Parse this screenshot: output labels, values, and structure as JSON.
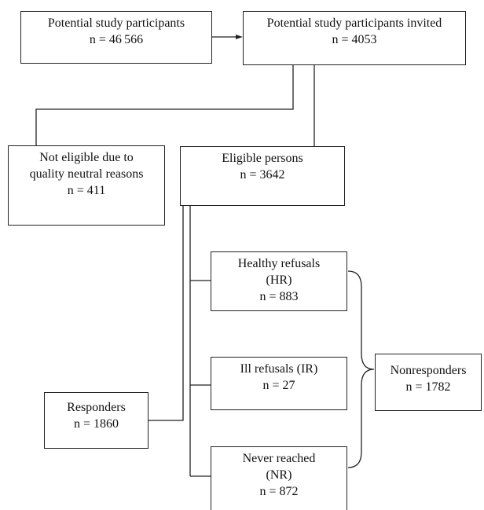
{
  "boxes": {
    "potential": {
      "lines": [
        "Potential study participants",
        "n = 46 566"
      ]
    },
    "invited": {
      "lines": [
        "Potential study participants invited",
        "n = 4053"
      ]
    },
    "not_eligible": {
      "lines": [
        "Not eligible due to",
        "quality neutral reasons",
        "n = 411"
      ]
    },
    "eligible": {
      "lines": [
        "Eligible persons",
        "n = 3642"
      ]
    },
    "healthy_refusals": {
      "lines": [
        "Healthy refusals",
        "(HR)",
        "n =  883"
      ]
    },
    "ill_refusals": {
      "lines": [
        "Ill refusals (IR)",
        "n =  27"
      ]
    },
    "never_reached": {
      "lines": [
        "Never reached",
        "(NR)",
        "n =  872"
      ]
    },
    "responders": {
      "lines": [
        "Responders",
        "n = 1860"
      ]
    },
    "nonresponders": {
      "lines": [
        "Nonresponders",
        "n =  1782"
      ]
    }
  }
}
